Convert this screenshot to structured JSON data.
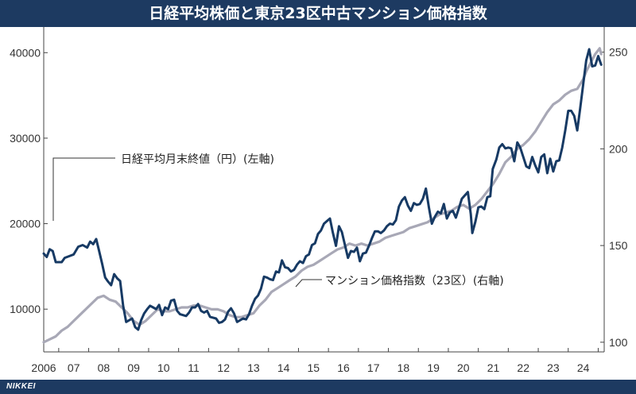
{
  "title": "日経平均株価と東京23区中古マンション価格指数",
  "brand": "NIKKEI",
  "chart_data": {
    "type": "line",
    "x_range": [
      2006.0,
      2024.7
    ],
    "x_ticks": [
      {
        "value": 2006,
        "label": "2006"
      },
      {
        "value": 2007,
        "label": "07"
      },
      {
        "value": 2008,
        "label": "08"
      },
      {
        "value": 2009,
        "label": "09"
      },
      {
        "value": 2010,
        "label": "10"
      },
      {
        "value": 2011,
        "label": "11"
      },
      {
        "value": 2012,
        "label": "12"
      },
      {
        "value": 2013,
        "label": "13"
      },
      {
        "value": 2014,
        "label": "14"
      },
      {
        "value": 2015,
        "label": "15"
      },
      {
        "value": 2016,
        "label": "16"
      },
      {
        "value": 2017,
        "label": "17"
      },
      {
        "value": 2018,
        "label": "18"
      },
      {
        "value": 2019,
        "label": "19"
      },
      {
        "value": 2020,
        "label": "20"
      },
      {
        "value": 2021,
        "label": "21"
      },
      {
        "value": 2022,
        "label": "22"
      },
      {
        "value": 2023,
        "label": "23"
      },
      {
        "value": 2024,
        "label": "24"
      }
    ],
    "y_left": {
      "ticks": [
        10000,
        20000,
        30000,
        40000
      ],
      "range": [
        5000,
        43000
      ]
    },
    "y_right": {
      "ticks": [
        100,
        150,
        200,
        250
      ],
      "range": [
        95,
        263
      ]
    },
    "grid": false,
    "colors": {
      "nikkei": "#173a64",
      "mansion": "#a8a8b6"
    },
    "series": [
      {
        "key": "nikkei",
        "name": "日経平均月末終値（円）(左軸)",
        "axis": "left",
        "points": [
          [
            2006.0,
            16500
          ],
          [
            2006.1,
            16100
          ],
          [
            2006.2,
            17000
          ],
          [
            2006.3,
            16800
          ],
          [
            2006.4,
            15500
          ],
          [
            2006.5,
            15500
          ],
          [
            2006.6,
            15500
          ],
          [
            2006.7,
            16000
          ],
          [
            2006.85,
            16200
          ],
          [
            2007.0,
            16400
          ],
          [
            2007.15,
            17300
          ],
          [
            2007.3,
            17500
          ],
          [
            2007.45,
            17200
          ],
          [
            2007.55,
            17900
          ],
          [
            2007.65,
            17600
          ],
          [
            2007.75,
            18200
          ],
          [
            2007.85,
            16800
          ],
          [
            2007.95,
            15300
          ],
          [
            2008.05,
            13700
          ],
          [
            2008.15,
            13200
          ],
          [
            2008.25,
            12800
          ],
          [
            2008.35,
            14100
          ],
          [
            2008.45,
            13600
          ],
          [
            2008.55,
            13300
          ],
          [
            2008.65,
            10400
          ],
          [
            2008.75,
            8500
          ],
          [
            2008.85,
            8700
          ],
          [
            2008.95,
            8900
          ],
          [
            2009.05,
            7900
          ],
          [
            2009.15,
            7600
          ],
          [
            2009.25,
            8700
          ],
          [
            2009.35,
            9500
          ],
          [
            2009.45,
            10000
          ],
          [
            2009.55,
            10400
          ],
          [
            2009.65,
            10200
          ],
          [
            2009.75,
            10000
          ],
          [
            2009.85,
            10500
          ],
          [
            2009.95,
            9300
          ],
          [
            2010.05,
            10200
          ],
          [
            2010.15,
            10000
          ],
          [
            2010.25,
            11000
          ],
          [
            2010.35,
            11100
          ],
          [
            2010.45,
            9800
          ],
          [
            2010.55,
            9400
          ],
          [
            2010.65,
            9300
          ],
          [
            2010.75,
            9200
          ],
          [
            2010.85,
            9600
          ],
          [
            2010.95,
            10200
          ],
          [
            2011.05,
            10200
          ],
          [
            2011.15,
            10600
          ],
          [
            2011.25,
            9800
          ],
          [
            2011.35,
            9600
          ],
          [
            2011.45,
            9800
          ],
          [
            2011.55,
            9100
          ],
          [
            2011.65,
            9000
          ],
          [
            2011.75,
            8900
          ],
          [
            2011.85,
            8400
          ],
          [
            2011.95,
            8500
          ],
          [
            2012.05,
            8800
          ],
          [
            2012.15,
            9700
          ],
          [
            2012.25,
            10100
          ],
          [
            2012.35,
            9500
          ],
          [
            2012.45,
            8500
          ],
          [
            2012.55,
            8700
          ],
          [
            2012.65,
            8900
          ],
          [
            2012.75,
            8800
          ],
          [
            2012.85,
            9400
          ],
          [
            2012.95,
            10400
          ],
          [
            2013.05,
            11200
          ],
          [
            2013.15,
            11600
          ],
          [
            2013.25,
            12400
          ],
          [
            2013.35,
            13800
          ],
          [
            2013.45,
            13700
          ],
          [
            2013.55,
            13500
          ],
          [
            2013.65,
            13400
          ],
          [
            2013.75,
            14400
          ],
          [
            2013.85,
            14300
          ],
          [
            2013.95,
            15700
          ],
          [
            2014.05,
            14900
          ],
          [
            2014.15,
            14800
          ],
          [
            2014.25,
            14400
          ],
          [
            2014.35,
            14600
          ],
          [
            2014.45,
            15200
          ],
          [
            2014.55,
            15600
          ],
          [
            2014.65,
            15400
          ],
          [
            2014.75,
            16200
          ],
          [
            2014.85,
            16400
          ],
          [
            2014.95,
            17500
          ],
          [
            2015.05,
            17700
          ],
          [
            2015.15,
            18800
          ],
          [
            2015.25,
            19200
          ],
          [
            2015.35,
            20000
          ],
          [
            2015.45,
            20300
          ],
          [
            2015.55,
            20600
          ],
          [
            2015.65,
            18900
          ],
          [
            2015.75,
            17400
          ],
          [
            2015.85,
            19700
          ],
          [
            2015.95,
            19000
          ],
          [
            2016.05,
            17500
          ],
          [
            2016.15,
            16000
          ],
          [
            2016.25,
            16800
          ],
          [
            2016.35,
            16700
          ],
          [
            2016.45,
            17200
          ],
          [
            2016.55,
            15600
          ],
          [
            2016.65,
            16500
          ],
          [
            2016.75,
            16600
          ],
          [
            2016.85,
            17400
          ],
          [
            2016.95,
            18300
          ],
          [
            2017.05,
            19100
          ],
          [
            2017.15,
            19100
          ],
          [
            2017.25,
            18900
          ],
          [
            2017.35,
            19200
          ],
          [
            2017.45,
            19700
          ],
          [
            2017.55,
            20000
          ],
          [
            2017.65,
            19900
          ],
          [
            2017.75,
            20400
          ],
          [
            2017.85,
            22000
          ],
          [
            2017.95,
            22700
          ],
          [
            2018.05,
            23100
          ],
          [
            2018.15,
            22100
          ],
          [
            2018.25,
            21500
          ],
          [
            2018.35,
            22400
          ],
          [
            2018.45,
            22200
          ],
          [
            2018.55,
            22300
          ],
          [
            2018.65,
            22900
          ],
          [
            2018.75,
            24100
          ],
          [
            2018.85,
            21900
          ],
          [
            2018.95,
            20000
          ],
          [
            2019.05,
            20800
          ],
          [
            2019.15,
            21400
          ],
          [
            2019.25,
            21200
          ],
          [
            2019.35,
            22300
          ],
          [
            2019.45,
            20600
          ],
          [
            2019.55,
            21300
          ],
          [
            2019.65,
            21500
          ],
          [
            2019.75,
            20700
          ],
          [
            2019.85,
            21800
          ],
          [
            2019.95,
            22900
          ],
          [
            2020.05,
            23300
          ],
          [
            2020.15,
            23700
          ],
          [
            2020.25,
            21100
          ],
          [
            2020.3,
            18900
          ],
          [
            2020.4,
            20200
          ],
          [
            2020.5,
            21900
          ],
          [
            2020.6,
            22000
          ],
          [
            2020.7,
            21700
          ],
          [
            2020.8,
            23100
          ],
          [
            2020.9,
            23200
          ],
          [
            2020.98,
            26400
          ],
          [
            2021.1,
            27500
          ],
          [
            2021.2,
            28900
          ],
          [
            2021.3,
            29300
          ],
          [
            2021.4,
            28800
          ],
          [
            2021.5,
            28900
          ],
          [
            2021.6,
            28800
          ],
          [
            2021.7,
            27300
          ],
          [
            2021.8,
            29500
          ],
          [
            2021.9,
            28900
          ],
          [
            2022.0,
            27800
          ],
          [
            2022.1,
            26700
          ],
          [
            2022.2,
            26500
          ],
          [
            2022.3,
            27800
          ],
          [
            2022.4,
            26800
          ],
          [
            2022.5,
            26000
          ],
          [
            2022.6,
            27800
          ],
          [
            2022.7,
            28100
          ],
          [
            2022.8,
            25900
          ],
          [
            2022.9,
            27600
          ],
          [
            2023.0,
            26100
          ],
          [
            2023.1,
            27300
          ],
          [
            2023.2,
            27400
          ],
          [
            2023.3,
            28900
          ],
          [
            2023.4,
            30900
          ],
          [
            2023.5,
            33200
          ],
          [
            2023.6,
            33200
          ],
          [
            2023.7,
            32600
          ],
          [
            2023.8,
            30900
          ],
          [
            2023.9,
            33500
          ],
          [
            2024.0,
            36300
          ],
          [
            2024.1,
            39100
          ],
          [
            2024.2,
            40400
          ],
          [
            2024.3,
            38400
          ],
          [
            2024.4,
            38500
          ],
          [
            2024.5,
            39600
          ],
          [
            2024.55,
            39100
          ],
          [
            2024.6,
            38600
          ]
        ]
      },
      {
        "key": "mansion",
        "name": "マンション価格指数（23区）(右軸)",
        "axis": "right",
        "points": [
          [
            2006.0,
            100
          ],
          [
            2006.2,
            101.5
          ],
          [
            2006.4,
            103
          ],
          [
            2006.6,
            106
          ],
          [
            2006.8,
            108
          ],
          [
            2007.0,
            111
          ],
          [
            2007.2,
            114
          ],
          [
            2007.4,
            117
          ],
          [
            2007.6,
            120
          ],
          [
            2007.8,
            123
          ],
          [
            2008.0,
            124
          ],
          [
            2008.2,
            122
          ],
          [
            2008.4,
            121
          ],
          [
            2008.6,
            118
          ],
          [
            2008.8,
            115
          ],
          [
            2009.0,
            111
          ],
          [
            2009.2,
            109
          ],
          [
            2009.4,
            111
          ],
          [
            2009.6,
            114
          ],
          [
            2009.8,
            117
          ],
          [
            2010.0,
            116
          ],
          [
            2010.2,
            116
          ],
          [
            2010.4,
            117
          ],
          [
            2010.6,
            118
          ],
          [
            2010.8,
            118
          ],
          [
            2011.0,
            119
          ],
          [
            2011.2,
            119
          ],
          [
            2011.4,
            118
          ],
          [
            2011.6,
            117
          ],
          [
            2011.8,
            117
          ],
          [
            2012.0,
            116
          ],
          [
            2012.2,
            114
          ],
          [
            2012.4,
            113
          ],
          [
            2012.6,
            113
          ],
          [
            2012.8,
            114
          ],
          [
            2013.0,
            115
          ],
          [
            2013.2,
            119
          ],
          [
            2013.4,
            122
          ],
          [
            2013.6,
            126
          ],
          [
            2013.8,
            128
          ],
          [
            2014.0,
            130
          ],
          [
            2014.2,
            132
          ],
          [
            2014.4,
            134
          ],
          [
            2014.6,
            137
          ],
          [
            2014.8,
            139
          ],
          [
            2015.0,
            140
          ],
          [
            2015.2,
            142
          ],
          [
            2015.4,
            144
          ],
          [
            2015.6,
            146
          ],
          [
            2015.8,
            148
          ],
          [
            2016.0,
            149
          ],
          [
            2016.2,
            151
          ],
          [
            2016.4,
            150
          ],
          [
            2016.6,
            151
          ],
          [
            2016.8,
            150
          ],
          [
            2017.0,
            151
          ],
          [
            2017.2,
            152
          ],
          [
            2017.4,
            154
          ],
          [
            2017.6,
            155
          ],
          [
            2017.8,
            156
          ],
          [
            2018.0,
            157
          ],
          [
            2018.2,
            159
          ],
          [
            2018.4,
            160
          ],
          [
            2018.6,
            161
          ],
          [
            2018.8,
            162
          ],
          [
            2019.0,
            164
          ],
          [
            2019.2,
            166
          ],
          [
            2019.4,
            167
          ],
          [
            2019.6,
            168
          ],
          [
            2019.8,
            170
          ],
          [
            2020.0,
            171
          ],
          [
            2020.2,
            169
          ],
          [
            2020.4,
            171
          ],
          [
            2020.6,
            174
          ],
          [
            2020.8,
            178
          ],
          [
            2021.0,
            182
          ],
          [
            2021.2,
            187
          ],
          [
            2021.4,
            193
          ],
          [
            2021.6,
            196
          ],
          [
            2021.8,
            200
          ],
          [
            2022.0,
            202
          ],
          [
            2022.2,
            205
          ],
          [
            2022.4,
            209
          ],
          [
            2022.6,
            214
          ],
          [
            2022.8,
            219
          ],
          [
            2023.0,
            223
          ],
          [
            2023.2,
            225
          ],
          [
            2023.4,
            228
          ],
          [
            2023.6,
            230
          ],
          [
            2023.8,
            231
          ],
          [
            2024.0,
            236
          ],
          [
            2024.1,
            240
          ],
          [
            2024.2,
            243
          ],
          [
            2024.3,
            246
          ],
          [
            2024.4,
            249
          ],
          [
            2024.5,
            251
          ],
          [
            2024.55,
            252
          ],
          [
            2024.6,
            249
          ]
        ]
      }
    ]
  }
}
